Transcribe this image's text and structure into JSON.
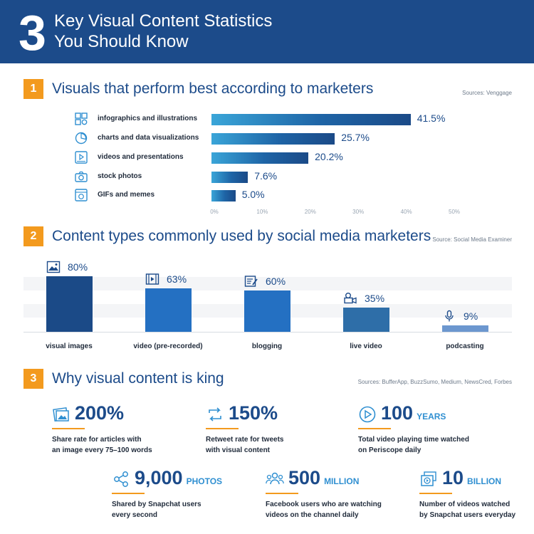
{
  "header": {
    "number": "3",
    "title_line1": "Key Visual Content Statistics",
    "title_line2": "You Should Know"
  },
  "colors": {
    "header_bg": "#1c4b8a",
    "accent_orange": "#f39a1e",
    "text_blue": "#1c4b8a",
    "light_blue": "#2f8fd1"
  },
  "sections": [
    {
      "number": "1",
      "title": "Visuals that perform best according to marketers",
      "source": "Sources: Venggage"
    },
    {
      "number": "2",
      "title": "Content types commonly used by social media marketers",
      "source": "Source: Social Media Examiner"
    },
    {
      "number": "3",
      "title": "Why visual content is king",
      "source": "Sources: BufferApp, BuzzSumo, Medium, NewsCred, Forbes"
    }
  ],
  "chart_data": [
    {
      "type": "bar",
      "orientation": "horizontal",
      "categories": [
        "infographics and illustrations",
        "charts and data visualizations",
        "videos and presentations",
        "stock photos",
        "GIFs and memes"
      ],
      "values": [
        41.5,
        25.7,
        20.2,
        7.6,
        5.0
      ],
      "value_labels": [
        "41.5%",
        "25.7%",
        "20.2%",
        "7.6%",
        "5.0%"
      ],
      "icons": [
        "infographic-icon",
        "chart-icon",
        "video-icon",
        "camera-icon",
        "gif-icon"
      ],
      "xlim": [
        0,
        50
      ],
      "xticks": [
        "0%",
        "10%",
        "20%",
        "30%",
        "40%",
        "50%"
      ],
      "title": "Visuals that perform best according to marketers"
    },
    {
      "type": "bar",
      "orientation": "vertical",
      "categories": [
        "visual images",
        "video (pre-recorded)",
        "blogging",
        "live video",
        "podcasting"
      ],
      "values": [
        80,
        63,
        60,
        35,
        9
      ],
      "value_labels": [
        "80%",
        "63%",
        "60%",
        "35%",
        "9%"
      ],
      "icons": [
        "image-icon",
        "film-icon",
        "blog-icon",
        "live-camera-icon",
        "microphone-icon"
      ],
      "bar_colors": [
        "#1b4a87",
        "#2470c2",
        "#2470c2",
        "#2e6ea8",
        "#6c97cf"
      ],
      "ylim": [
        0,
        100
      ],
      "title": "Content types commonly used by social media marketers"
    }
  ],
  "stats": [
    {
      "number": "200%",
      "unit": "",
      "line1": "Share rate for articles with",
      "line2": "an image every 75–100 words",
      "icon": "image-stack-icon"
    },
    {
      "number": "150%",
      "unit": "",
      "line1": "Retweet rate for tweets",
      "line2": "with visual content",
      "icon": "retweet-icon"
    },
    {
      "number": "100",
      "unit": "YEARS",
      "line1": "Total video playing time watched",
      "line2": "on Periscope daily",
      "icon": "play-circle-icon"
    },
    {
      "number": "9,000",
      "unit": "PHOTOS",
      "line1": "Shared by Snapchat users",
      "line2": "every second",
      "icon": "share-icon"
    },
    {
      "number": "500",
      "unit": "MILLION",
      "line1": "Facebook users who are watching",
      "line2": "videos on the channel daily",
      "icon": "users-icon"
    },
    {
      "number": "10",
      "unit": "BILLION",
      "line1": "Number of videos watched",
      "line2": "by Snapchat users everyday",
      "icon": "video-stack-icon"
    }
  ]
}
